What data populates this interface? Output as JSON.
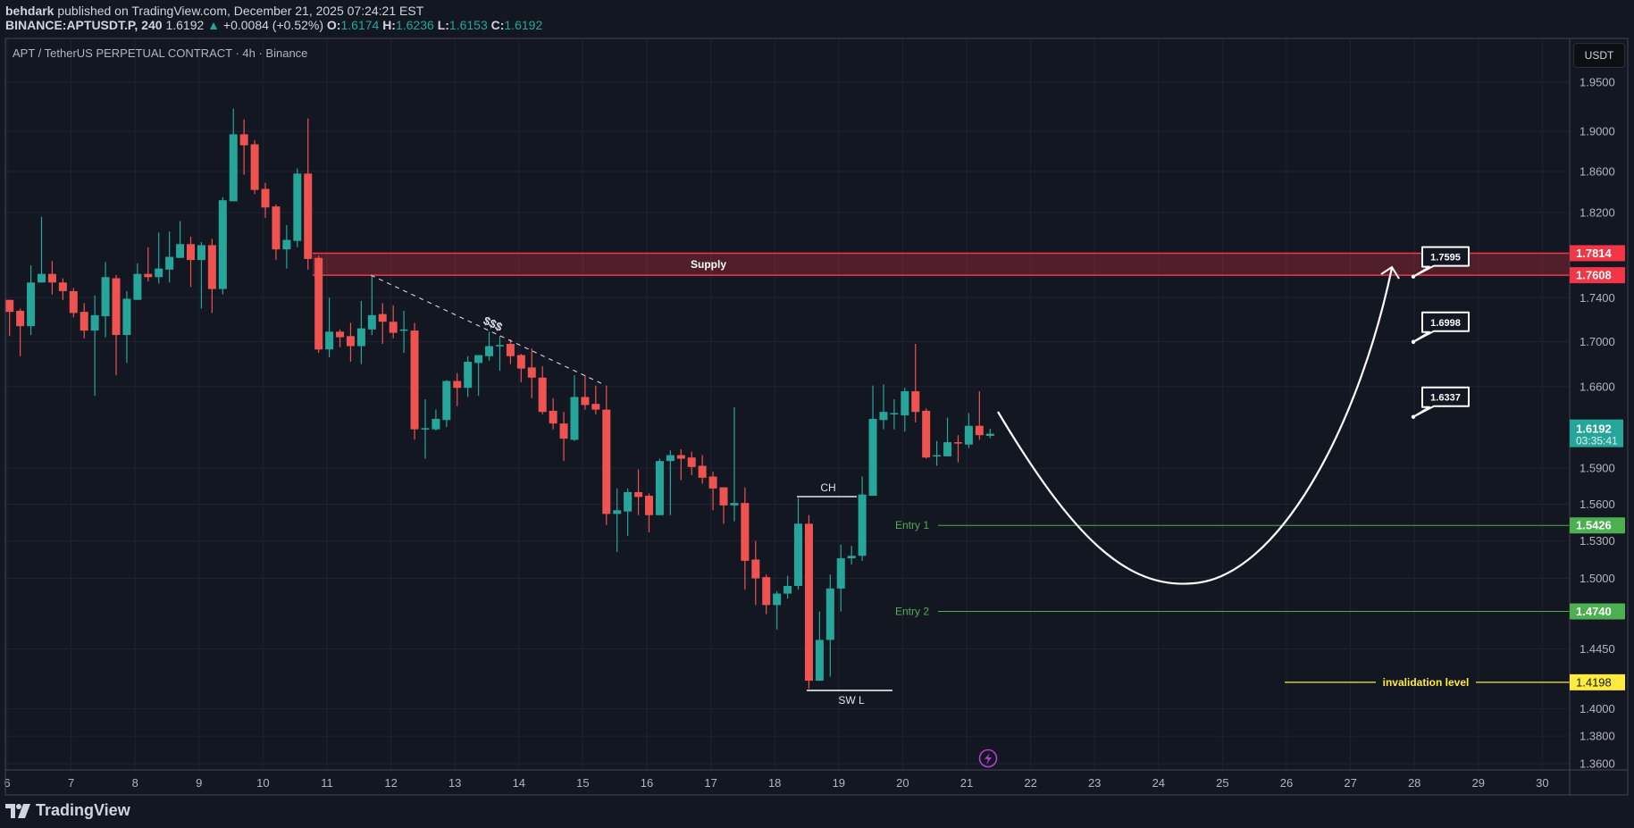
{
  "header": {
    "author": "behdark",
    "published": "published on TradingView.com, December 21, 2025 07:24:21 EST",
    "symbol": "BINANCE:APTUSDT.P, 240",
    "last": "1.6192",
    "change": "+0.0084 (+0.52%)",
    "o_label": "O:",
    "o": "1.6174",
    "h_label": "H:",
    "h": "1.6236",
    "l_label": "L:",
    "l": "1.6153",
    "c_label": "C:",
    "c": "1.6192"
  },
  "chart_title": "APT / TetherUS PERPETUAL CONTRACT · 4h · Binance",
  "currency_button": "USDT",
  "brand": "TradingView",
  "colors": {
    "background": "#131722",
    "up": "#26a69a",
    "down": "#ef5350",
    "supply": "#f23645",
    "entry": "#4caf50",
    "invalidation": "#ffeb3b",
    "grid": "#1f2330",
    "alert": "#b53fd1"
  },
  "chart_data": {
    "type": "candlestick",
    "interval": "4h",
    "y_scale": "log",
    "ylim": [
      1.36,
      1.95
    ],
    "grid": true,
    "x_ticks": [
      "6",
      "7",
      "8",
      "9",
      "10",
      "11",
      "12",
      "13",
      "14",
      "15",
      "16",
      "17",
      "18",
      "19",
      "20",
      "21",
      "22",
      "23",
      "24",
      "25",
      "26",
      "27",
      "28",
      "29",
      "30"
    ],
    "y_ticks": [
      "1.9500",
      "1.9000",
      "1.8600",
      "1.8200",
      "1.7400",
      "1.7000",
      "1.6600",
      "1.5900",
      "1.5600",
      "1.5300",
      "1.5000",
      "1.4450",
      "1.4000",
      "1.3800",
      "1.3600"
    ],
    "candles_ohlc": [
      [
        1.738,
        1.738,
        1.705,
        1.727
      ],
      [
        1.728,
        1.73,
        1.687,
        1.714
      ],
      [
        1.714,
        1.77,
        1.706,
        1.754
      ],
      [
        1.754,
        1.816,
        1.754,
        1.762
      ],
      [
        1.762,
        1.774,
        1.743,
        1.754
      ],
      [
        1.754,
        1.758,
        1.738,
        1.746
      ],
      [
        1.746,
        1.749,
        1.722,
        1.726
      ],
      [
        1.727,
        1.735,
        1.703,
        1.71
      ],
      [
        1.71,
        1.742,
        1.652,
        1.724
      ],
      [
        1.723,
        1.773,
        1.704,
        1.759
      ],
      [
        1.758,
        1.761,
        1.67,
        1.706
      ],
      [
        1.706,
        1.746,
        1.681,
        1.739
      ],
      [
        1.738,
        1.772,
        1.738,
        1.762
      ],
      [
        1.762,
        1.787,
        1.755,
        1.759
      ],
      [
        1.759,
        1.801,
        1.753,
        1.767
      ],
      [
        1.766,
        1.802,
        1.754,
        1.778
      ],
      [
        1.777,
        1.812,
        1.777,
        1.79
      ],
      [
        1.79,
        1.797,
        1.75,
        1.775
      ],
      [
        1.775,
        1.792,
        1.73,
        1.789
      ],
      [
        1.789,
        1.795,
        1.726,
        1.748
      ],
      [
        1.748,
        1.835,
        1.743,
        1.832
      ],
      [
        1.831,
        1.923,
        1.831,
        1.897
      ],
      [
        1.897,
        1.912,
        1.857,
        1.886
      ],
      [
        1.887,
        1.891,
        1.838,
        1.842
      ],
      [
        1.843,
        1.849,
        1.815,
        1.825
      ],
      [
        1.826,
        1.828,
        1.775,
        1.785
      ],
      [
        1.785,
        1.808,
        1.767,
        1.794
      ],
      [
        1.793,
        1.863,
        1.787,
        1.858
      ],
      [
        1.858,
        1.913,
        1.766,
        1.776
      ],
      [
        1.777,
        1.779,
        1.69,
        1.693
      ],
      [
        1.693,
        1.74,
        1.686,
        1.709
      ],
      [
        1.709,
        1.711,
        1.695,
        1.704
      ],
      [
        1.705,
        1.717,
        1.682,
        1.696
      ],
      [
        1.696,
        1.737,
        1.68,
        1.712
      ],
      [
        1.711,
        1.76,
        1.706,
        1.724
      ],
      [
        1.725,
        1.735,
        1.698,
        1.718
      ],
      [
        1.718,
        1.733,
        1.703,
        1.708
      ],
      [
        1.71,
        1.728,
        1.69,
        1.711
      ],
      [
        1.71,
        1.717,
        1.614,
        1.623
      ],
      [
        1.623,
        1.649,
        1.598,
        1.624
      ],
      [
        1.623,
        1.64,
        1.622,
        1.632
      ],
      [
        1.631,
        1.666,
        1.625,
        1.665
      ],
      [
        1.665,
        1.672,
        1.643,
        1.659
      ],
      [
        1.659,
        1.687,
        1.651,
        1.682
      ],
      [
        1.681,
        1.688,
        1.652,
        1.688
      ],
      [
        1.687,
        1.709,
        1.683,
        1.696
      ],
      [
        1.696,
        1.705,
        1.674,
        1.697
      ],
      [
        1.698,
        1.702,
        1.68,
        1.687
      ],
      [
        1.688,
        1.689,
        1.664,
        1.676
      ],
      [
        1.677,
        1.694,
        1.65,
        1.668
      ],
      [
        1.668,
        1.678,
        1.636,
        1.638
      ],
      [
        1.639,
        1.65,
        1.623,
        1.628
      ],
      [
        1.628,
        1.638,
        1.596,
        1.615
      ],
      [
        1.614,
        1.67,
        1.613,
        1.651
      ],
      [
        1.651,
        1.67,
        1.64,
        1.644
      ],
      [
        1.645,
        1.661,
        1.636,
        1.64
      ],
      [
        1.64,
        1.661,
        1.543,
        1.552
      ],
      [
        1.552,
        1.573,
        1.521,
        1.555
      ],
      [
        1.554,
        1.573,
        1.534,
        1.57
      ],
      [
        1.57,
        1.589,
        1.551,
        1.566
      ],
      [
        1.567,
        1.569,
        1.537,
        1.551
      ],
      [
        1.551,
        1.598,
        1.551,
        1.596
      ],
      [
        1.596,
        1.605,
        1.551,
        1.601
      ],
      [
        1.601,
        1.606,
        1.58,
        1.598
      ],
      [
        1.599,
        1.604,
        1.584,
        1.591
      ],
      [
        1.592,
        1.601,
        1.577,
        1.582
      ],
      [
        1.583,
        1.587,
        1.555,
        1.573
      ],
      [
        1.574,
        1.574,
        1.544,
        1.559
      ],
      [
        1.559,
        1.642,
        1.546,
        1.561
      ],
      [
        1.561,
        1.574,
        1.491,
        1.514
      ],
      [
        1.515,
        1.53,
        1.479,
        1.5
      ],
      [
        1.501,
        1.503,
        1.472,
        1.479
      ],
      [
        1.479,
        1.49,
        1.46,
        1.488
      ],
      [
        1.488,
        1.502,
        1.484,
        1.494
      ],
      [
        1.494,
        1.565,
        1.491,
        1.544
      ],
      [
        1.544,
        1.551,
        1.415,
        1.421
      ],
      [
        1.421,
        1.474,
        1.421,
        1.452
      ],
      [
        1.452,
        1.503,
        1.424,
        1.492
      ],
      [
        1.492,
        1.527,
        1.474,
        1.516
      ],
      [
        1.516,
        1.526,
        1.511,
        1.518
      ],
      [
        1.518,
        1.583,
        1.514,
        1.568
      ],
      [
        1.567,
        1.661,
        1.567,
        1.632
      ],
      [
        1.631,
        1.662,
        1.623,
        1.638
      ],
      [
        1.637,
        1.649,
        1.623,
        1.637
      ],
      [
        1.635,
        1.659,
        1.621,
        1.656
      ],
      [
        1.656,
        1.698,
        1.629,
        1.638
      ],
      [
        1.639,
        1.641,
        1.598,
        1.599
      ],
      [
        1.6,
        1.613,
        1.592,
        1.601
      ],
      [
        1.6,
        1.633,
        1.6,
        1.612
      ],
      [
        1.612,
        1.618,
        1.595,
        1.611
      ],
      [
        1.61,
        1.637,
        1.607,
        1.626
      ],
      [
        1.626,
        1.656,
        1.614,
        1.618
      ],
      [
        1.6174,
        1.6236,
        1.6153,
        1.6192
      ]
    ]
  },
  "annotations": {
    "supply": {
      "label": "Supply",
      "top": 1.7814,
      "bottom": 1.7608,
      "top_label": "1.7814",
      "bottom_label": "1.7608"
    },
    "liquidity_label": "$$$",
    "ch_label": "CH",
    "swl_label": "SW L",
    "entry1": {
      "label": "Entry 1",
      "price": 1.5426,
      "price_label": "1.5426"
    },
    "entry2": {
      "label": "Entry 2",
      "price": 1.474,
      "price_label": "1.4740"
    },
    "invalidation": {
      "label": "invalidation level",
      "price": 1.4198,
      "price_label": "1.4198"
    },
    "callouts": [
      {
        "text": "1.7595",
        "price": 1.7595
      },
      {
        "text": "1.6998",
        "price": 1.6998
      },
      {
        "text": "1.6337",
        "price": 1.6337
      }
    ],
    "last_price": {
      "price": 1.6192,
      "label": "1.6192",
      "countdown": "03:35:41"
    }
  }
}
